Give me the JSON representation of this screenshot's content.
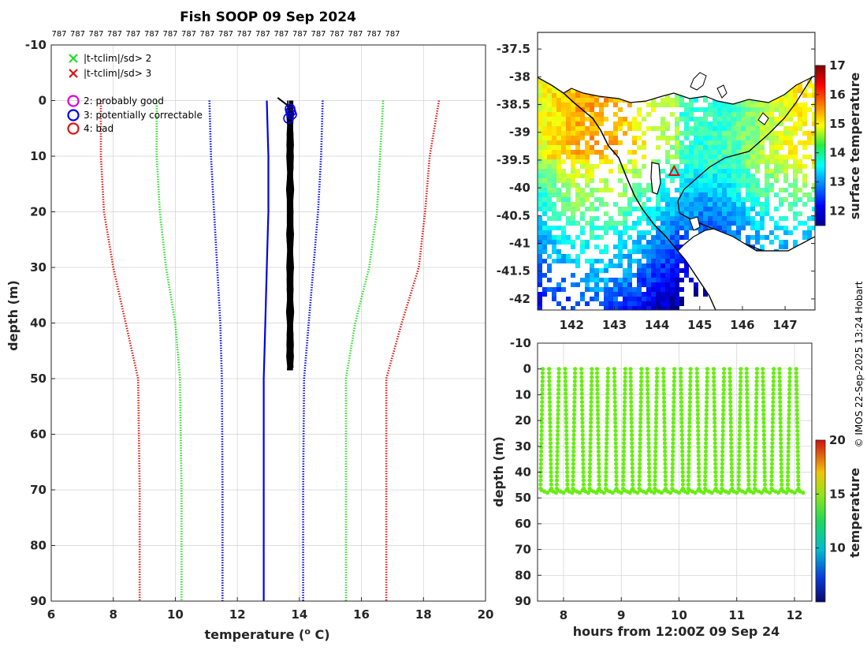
{
  "header": {
    "title": "Fish SOOP 09 Sep 2024",
    "credit": "© IMOS 22-Sep-2025 13:24 Hobart"
  },
  "colors": {
    "grid": "#d0d0d0",
    "axis": "#262626",
    "green": "#22dd22",
    "red": "#dd1111",
    "blue": "#0000ee",
    "magenta": "#dd00dd",
    "land": "#ffffff",
    "triangle": "#ee0000",
    "obs": "#66ee11"
  },
  "chart_data": [
    {
      "id": "profile",
      "type": "line",
      "xlabel": "temperature (°C)",
      "ylabel": "depth (m)",
      "xlim": [
        6,
        20
      ],
      "ylim": [
        -10,
        90
      ],
      "y_inverted": true,
      "xticks": [
        "6",
        "8",
        "10",
        "12",
        "14",
        "16",
        "18",
        "20"
      ],
      "yticks": [
        "-10",
        "0",
        "10",
        "20",
        "30",
        "40",
        "50",
        "60",
        "70",
        "80",
        "90"
      ],
      "top_labels": [
        "787",
        "787",
        "787",
        "787",
        "787",
        "787",
        "787",
        "787",
        "787",
        "787",
        "787",
        "787",
        "787",
        "787",
        "787",
        "787",
        "787",
        "787",
        "787"
      ],
      "legend": [
        {
          "marker": "x",
          "color": "green",
          "label": "|t-tclim|/sd> 2"
        },
        {
          "marker": "x",
          "color": "red",
          "label": "|t-tclim|/sd> 3"
        },
        {
          "marker": "o",
          "color": "magenta",
          "label": "2: probably good"
        },
        {
          "marker": "o",
          "color": "blue",
          "label": "3: potentially correctable"
        },
        {
          "marker": "o",
          "color": "red",
          "label": "4: bad"
        }
      ],
      "series": [
        {
          "name": "clim-3sd",
          "color": "red",
          "style": "dotted",
          "x": [
            7.6,
            7.6,
            7.7,
            8.0,
            8.4,
            8.8,
            8.85,
            8.85
          ],
          "y": [
            0,
            10,
            20,
            30,
            40,
            50,
            70,
            90
          ]
        },
        {
          "name": "clim-2sd",
          "color": "green",
          "style": "dotted",
          "x": [
            9.4,
            9.4,
            9.5,
            9.7,
            10.0,
            10.15,
            10.2,
            10.2
          ],
          "y": [
            0,
            10,
            20,
            30,
            40,
            50,
            70,
            90
          ]
        },
        {
          "name": "clim-1sd",
          "color": "blue",
          "style": "dotted",
          "x": [
            11.1,
            11.15,
            11.25,
            11.35,
            11.45,
            11.5,
            11.52,
            11.52
          ],
          "y": [
            0,
            10,
            20,
            30,
            40,
            50,
            70,
            90
          ]
        },
        {
          "name": "climatology",
          "color": "blue",
          "style": "solid",
          "x": [
            12.95,
            13.0,
            13.0,
            12.95,
            12.9,
            12.85,
            12.85,
            12.85
          ],
          "y": [
            0,
            10,
            20,
            30,
            40,
            50,
            70,
            90
          ]
        },
        {
          "name": "clim+1sd",
          "color": "blue",
          "style": "dotted",
          "x": [
            14.75,
            14.7,
            14.6,
            14.45,
            14.3,
            14.15,
            14.12,
            14.12
          ],
          "y": [
            0,
            10,
            20,
            30,
            40,
            50,
            70,
            90
          ]
        },
        {
          "name": "clim+2sd",
          "color": "green",
          "style": "dotted",
          "x": [
            16.7,
            16.6,
            16.5,
            16.25,
            15.8,
            15.5,
            15.5,
            15.5
          ],
          "y": [
            0,
            10,
            20,
            30,
            40,
            50,
            70,
            90
          ]
        },
        {
          "name": "clim+3sd",
          "color": "red",
          "style": "dotted",
          "x": [
            18.5,
            18.2,
            18.05,
            17.85,
            17.3,
            16.8,
            16.8,
            16.8
          ],
          "y": [
            0,
            10,
            20,
            30,
            40,
            50,
            70,
            90
          ]
        }
      ],
      "observed": {
        "name": "profiles",
        "color": "#000000",
        "x_min": 13.62,
        "x_max": 13.78,
        "depth_min": 0,
        "depth_max": 48.5
      },
      "flag3_points": {
        "x": [
          13.7,
          13.75,
          13.65,
          13.72
        ],
        "y": [
          1.5,
          2.5,
          3.2,
          2.0
        ]
      }
    },
    {
      "id": "map",
      "type": "heatmap",
      "xlim": [
        141.2,
        147.7
      ],
      "ylim": [
        -42.2,
        -37.2
      ],
      "xticks": [
        "142",
        "143",
        "144",
        "145",
        "146",
        "147"
      ],
      "yticks": [
        "-37.5",
        "-38",
        "-38.5",
        "-39",
        "-39.5",
        "-40",
        "-40.5",
        "-41",
        "-41.5",
        "-42"
      ],
      "colorbar": {
        "label": "surface temperature",
        "range": [
          11.5,
          17
        ],
        "ticks": [
          "12",
          "13",
          "14",
          "15",
          "16",
          "17"
        ]
      },
      "marker": {
        "type": "triangle",
        "lon": 144.4,
        "lat": -39.7
      }
    },
    {
      "id": "timeseries",
      "type": "scatter",
      "xlabel": "hours from 12:00Z 09 Sep 24",
      "ylabel": "depth (m)",
      "xlim": [
        7.55,
        12.3
      ],
      "ylim": [
        -10,
        90
      ],
      "y_inverted": true,
      "xticks": [
        "8",
        "9",
        "10",
        "11",
        "12"
      ],
      "yticks": [
        "-10",
        "0",
        "10",
        "20",
        "30",
        "40",
        "50",
        "60",
        "70",
        "80",
        "90"
      ],
      "colorbar": {
        "label": "temperature",
        "range": [
          5,
          20
        ],
        "ticks": [
          "10",
          "15",
          "20"
        ]
      },
      "casts": [
        7.62,
        7.77,
        7.9,
        8.05,
        8.18,
        8.33,
        8.47,
        8.6,
        8.75,
        8.9,
        9.05,
        9.18,
        9.33,
        9.47,
        9.6,
        9.75,
        9.9,
        10.05,
        10.18,
        10.33,
        10.47,
        10.62,
        10.76,
        10.9,
        11.05,
        11.19,
        11.33,
        11.47,
        11.62,
        11.76,
        11.9,
        12.05
      ],
      "cast_depth": [
        0,
        48
      ],
      "point_color": "#66ee11"
    }
  ]
}
